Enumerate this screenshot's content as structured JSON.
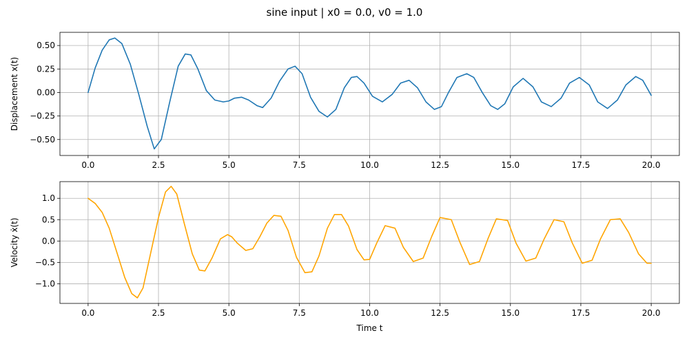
{
  "figure": {
    "title": "sine input | x0 = 0.0, v0 = 1.0"
  },
  "chart_data": [
    {
      "type": "line",
      "title": "",
      "xlabel": "",
      "ylabel": "Displacement x(t)",
      "xlim": [
        -1,
        21
      ],
      "ylim": [
        -0.67,
        0.64
      ],
      "xticks": [
        0,
        2.5,
        5,
        7.5,
        10,
        12.5,
        15,
        17.5,
        20
      ],
      "xtick_labels": [
        "0.0",
        "2.5",
        "5.0",
        "7.5",
        "10.0",
        "12.5",
        "15.0",
        "17.5",
        "20.0"
      ],
      "yticks": [
        -0.5,
        -0.25,
        0,
        0.25,
        0.5
      ],
      "ytick_labels": [
        "−0.50",
        "−0.25",
        "0.00",
        "0.25",
        "0.50"
      ],
      "grid": true,
      "series": [
        {
          "color": "#1f77b4",
          "x": [
            0,
            0.25,
            0.5,
            0.75,
            0.95,
            1.2,
            1.5,
            1.8,
            2.1,
            2.35,
            2.6,
            2.9,
            3.2,
            3.45,
            3.65,
            3.9,
            4.2,
            4.5,
            4.8,
            5.0,
            5.2,
            5.45,
            5.7,
            6.0,
            6.2,
            6.5,
            6.8,
            7.1,
            7.35,
            7.6,
            7.9,
            8.2,
            8.5,
            8.8,
            9.1,
            9.35,
            9.55,
            9.8,
            10.1,
            10.45,
            10.8,
            11.1,
            11.4,
            11.7,
            12.0,
            12.3,
            12.55,
            12.8,
            13.1,
            13.45,
            13.7,
            14.0,
            14.3,
            14.55,
            14.8,
            15.1,
            15.45,
            15.8,
            16.1,
            16.45,
            16.8,
            17.1,
            17.45,
            17.8,
            18.1,
            18.45,
            18.8,
            19.1,
            19.45,
            19.7,
            20.0
          ],
          "y": [
            0.0,
            0.26,
            0.45,
            0.56,
            0.58,
            0.52,
            0.3,
            -0.02,
            -0.36,
            -0.6,
            -0.5,
            -0.1,
            0.28,
            0.41,
            0.4,
            0.25,
            0.02,
            -0.08,
            -0.1,
            -0.09,
            -0.06,
            -0.05,
            -0.08,
            -0.14,
            -0.16,
            -0.06,
            0.12,
            0.25,
            0.28,
            0.2,
            -0.05,
            -0.2,
            -0.26,
            -0.18,
            0.05,
            0.16,
            0.17,
            0.1,
            -0.04,
            -0.1,
            -0.02,
            0.1,
            0.13,
            0.05,
            -0.1,
            -0.18,
            -0.15,
            0.0,
            0.16,
            0.2,
            0.16,
            0.0,
            -0.14,
            -0.18,
            -0.12,
            0.06,
            0.15,
            0.06,
            -0.1,
            -0.15,
            -0.06,
            0.1,
            0.16,
            0.08,
            -0.1,
            -0.17,
            -0.08,
            0.08,
            0.17,
            0.13,
            -0.03
          ]
        }
      ]
    },
    {
      "type": "line",
      "title": "",
      "xlabel": "Time t",
      "ylabel": "Velocity ẋ(t)",
      "xlim": [
        -1,
        21
      ],
      "ylim": [
        -1.46,
        1.39
      ],
      "xticks": [
        0,
        2.5,
        5,
        7.5,
        10,
        12.5,
        15,
        17.5,
        20
      ],
      "xtick_labels": [
        "0.0",
        "2.5",
        "5.0",
        "7.5",
        "10.0",
        "12.5",
        "15.0",
        "17.5",
        "20.0"
      ],
      "yticks": [
        -1,
        -0.5,
        0,
        0.5,
        1
      ],
      "ytick_labels": [
        "−1.0",
        "−0.5",
        "0.0",
        "0.5",
        "1.0"
      ],
      "grid": true,
      "series": [
        {
          "color": "#ffa500",
          "x": [
            0,
            0.25,
            0.5,
            0.75,
            1.0,
            1.3,
            1.55,
            1.75,
            1.95,
            2.2,
            2.5,
            2.75,
            2.95,
            3.15,
            3.4,
            3.7,
            3.95,
            4.15,
            4.4,
            4.7,
            4.95,
            5.1,
            5.3,
            5.6,
            5.85,
            6.1,
            6.35,
            6.6,
            6.85,
            7.1,
            7.4,
            7.7,
            7.95,
            8.2,
            8.5,
            8.75,
            9.0,
            9.25,
            9.55,
            9.8,
            10.0,
            10.25,
            10.55,
            10.9,
            11.2,
            11.55,
            11.9,
            12.2,
            12.5,
            12.9,
            13.2,
            13.55,
            13.9,
            14.2,
            14.5,
            14.9,
            15.2,
            15.55,
            15.9,
            16.2,
            16.55,
            16.9,
            17.2,
            17.55,
            17.9,
            18.2,
            18.55,
            18.9,
            19.2,
            19.55,
            19.85,
            20.0
          ],
          "y": [
            1.0,
            0.88,
            0.67,
            0.3,
            -0.22,
            -0.85,
            -1.23,
            -1.33,
            -1.1,
            -0.35,
            0.55,
            1.15,
            1.28,
            1.1,
            0.45,
            -0.3,
            -0.68,
            -0.7,
            -0.4,
            0.05,
            0.15,
            0.1,
            -0.05,
            -0.22,
            -0.18,
            0.1,
            0.42,
            0.6,
            0.58,
            0.25,
            -0.38,
            -0.74,
            -0.72,
            -0.35,
            0.3,
            0.62,
            0.62,
            0.35,
            -0.2,
            -0.44,
            -0.43,
            -0.05,
            0.36,
            0.3,
            -0.15,
            -0.48,
            -0.4,
            0.1,
            0.55,
            0.5,
            -0.02,
            -0.55,
            -0.48,
            0.05,
            0.52,
            0.48,
            -0.05,
            -0.47,
            -0.4,
            0.05,
            0.5,
            0.45,
            -0.05,
            -0.52,
            -0.45,
            0.05,
            0.5,
            0.52,
            0.2,
            -0.3,
            -0.52,
            -0.52
          ]
        }
      ]
    }
  ]
}
